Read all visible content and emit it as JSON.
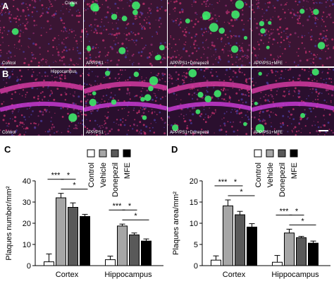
{
  "panels": {
    "A": {
      "letter": "A",
      "region": "Cortex",
      "images": [
        {
          "label": "Control",
          "plaques": 2
        },
        {
          "label": "APP/PS1",
          "plaques": 12
        },
        {
          "label": "APP/PS1+Donepezil",
          "plaques": 9
        },
        {
          "label": "APP/PS1+MFE",
          "plaques": 7
        }
      ]
    },
    "B": {
      "letter": "B",
      "region": "Hippocampus",
      "images": [
        {
          "label": "Control",
          "plaques": 1
        },
        {
          "label": "APP/PS1",
          "plaques": 10
        },
        {
          "label": "APP/PS1+Donepezil",
          "plaques": 7
        },
        {
          "label": "APP/PS1+MFE",
          "plaques": 5
        }
      ]
    }
  },
  "legend": {
    "items": [
      {
        "name": "Control",
        "color": "#ffffff"
      },
      {
        "name": "Vehicle",
        "color": "#a6a6a6"
      },
      {
        "name": "Donepezil",
        "color": "#595959"
      },
      {
        "name": "MFE",
        "color": "#000000"
      }
    ]
  },
  "chart_data": [
    {
      "panel": "C",
      "type": "bar",
      "ylabel": "Plaques number/mm²",
      "ylim": [
        0,
        40
      ],
      "yticks": [
        0,
        10,
        20,
        30,
        40
      ],
      "categories": [
        "Cortex",
        "Hippocampus"
      ],
      "series": [
        {
          "name": "Control",
          "values": [
            1.8,
            2.8
          ],
          "errors": [
            3.7,
            1.7
          ]
        },
        {
          "name": "Vehicle",
          "values": [
            32,
            18.7
          ],
          "errors": [
            2.1,
            0.9
          ]
        },
        {
          "name": "Donepezil",
          "values": [
            27.5,
            14.5
          ],
          "errors": [
            2.1,
            0.9
          ]
        },
        {
          "name": "MFE",
          "values": [
            23.2,
            11.6
          ],
          "errors": [
            1.0,
            1.0
          ]
        }
      ],
      "significance": [
        {
          "cat": 0,
          "from": 0,
          "to": 1,
          "label": "***"
        },
        {
          "cat": 0,
          "from": 1,
          "to": 2,
          "label": "*"
        },
        {
          "cat": 0,
          "from": 1,
          "to": 3,
          "label": "*"
        },
        {
          "cat": 1,
          "from": 0,
          "to": 1,
          "label": "***"
        },
        {
          "cat": 1,
          "from": 1,
          "to": 2,
          "label": "*"
        },
        {
          "cat": 1,
          "from": 1,
          "to": 3,
          "label": "*"
        }
      ]
    },
    {
      "panel": "D",
      "type": "bar",
      "ylabel": "Plaques area/mm²",
      "ylim": [
        0,
        20
      ],
      "yticks": [
        0,
        5,
        10,
        15,
        20
      ],
      "categories": [
        "Cortex",
        "Hippocampus"
      ],
      "series": [
        {
          "name": "Control",
          "values": [
            1.3,
            0.8
          ],
          "errors": [
            1.0,
            1.6
          ]
        },
        {
          "name": "Vehicle",
          "values": [
            14.1,
            7.7
          ],
          "errors": [
            1.4,
            0.9
          ]
        },
        {
          "name": "Donepezil",
          "values": [
            12.0,
            6.6
          ],
          "errors": [
            0.8,
            0.3
          ]
        },
        {
          "name": "MFE",
          "values": [
            9.1,
            5.3
          ],
          "errors": [
            0.8,
            0.5
          ]
        }
      ],
      "significance": [
        {
          "cat": 0,
          "from": 0,
          "to": 1,
          "label": "***"
        },
        {
          "cat": 0,
          "from": 1,
          "to": 2,
          "label": "*"
        },
        {
          "cat": 0,
          "from": 1,
          "to": 3,
          "label": "*"
        },
        {
          "cat": 1,
          "from": 0,
          "to": 1,
          "label": "***"
        },
        {
          "cat": 1,
          "from": 1,
          "to": 2,
          "label": "*"
        },
        {
          "cat": 1,
          "from": 1,
          "to": 3,
          "label": "*"
        }
      ]
    }
  ]
}
